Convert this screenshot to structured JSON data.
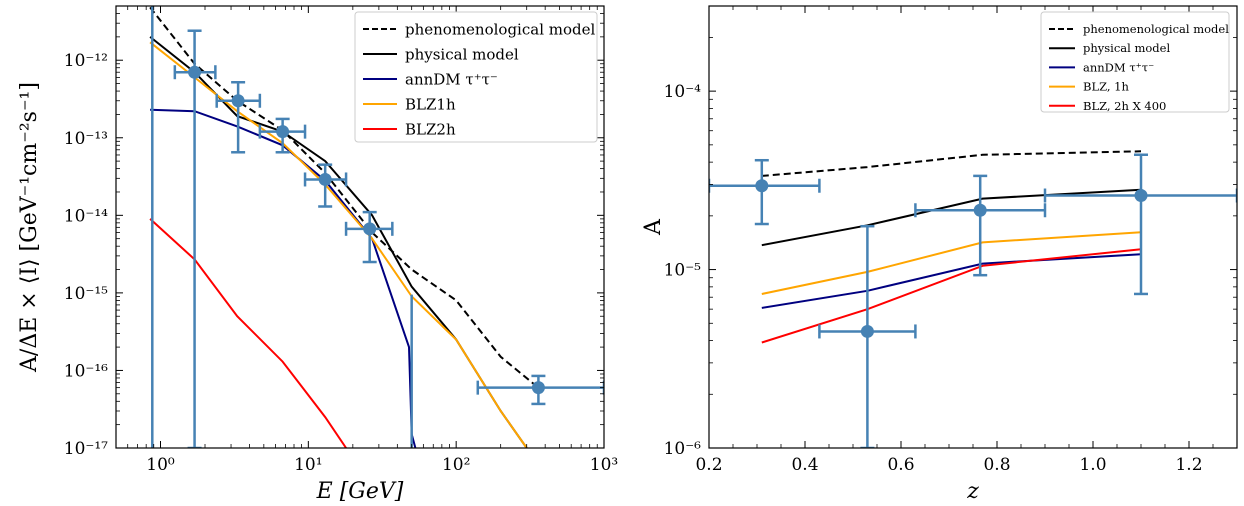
{
  "chart_data": [
    {
      "type": "line",
      "title": "",
      "xlabel": "E [GeV]",
      "ylabel": "A/ΔE × ⟨I⟩ [GeV⁻¹cm⁻²s⁻¹]",
      "xscale": "log",
      "yscale": "log",
      "xlim": [
        0.5,
        1000
      ],
      "ylim": [
        1e-17,
        5e-12
      ],
      "x_ticks": [
        1,
        10,
        100,
        1000
      ],
      "x_tick_labels": [
        "10⁰",
        "10¹",
        "10²",
        "10³"
      ],
      "y_ticks": [
        1e-17,
        1e-16,
        1e-15,
        1e-14,
        1e-13,
        1e-12
      ],
      "y_tick_labels": [
        "10⁻¹⁷",
        "10⁻¹⁶",
        "10⁻¹⁵",
        "10⁻¹⁴",
        "10⁻¹³",
        "10⁻¹²"
      ],
      "grid": false,
      "legend_position": "top-right",
      "series": [
        {
          "name": "phenomenological model",
          "color": "#000000",
          "dash": "dashed",
          "x": [
            0.85,
            1.7,
            3.3,
            6.7,
            13,
            27,
            50,
            100,
            200,
            380
          ],
          "y": [
            4.8e-12,
            9e-13,
            3e-13,
            1.25e-13,
            3.5e-14,
            6e-15,
            2e-15,
            8e-16,
            1.5e-16,
            5.5e-17
          ]
        },
        {
          "name": "physical model",
          "color": "#000000",
          "dash": "solid",
          "x": [
            0.85,
            1.7,
            3.3,
            6.7,
            13,
            27,
            50,
            100,
            200,
            300
          ],
          "y": [
            2e-12,
            7e-13,
            1.9e-13,
            1.2e-13,
            5e-14,
            1e-14,
            1.2e-15,
            2.5e-16,
            3e-17,
            1e-17
          ]
        },
        {
          "name": "annDM τ⁺τ⁻",
          "color": "#000080",
          "dash": "solid",
          "x": [
            0.85,
            1.7,
            3.3,
            6.7,
            13,
            27,
            48,
            50,
            53
          ],
          "y": [
            2.3e-13,
            2.2e-13,
            1.4e-13,
            8e-14,
            2.8e-14,
            5e-15,
            2e-16,
            1.5e-17,
            1e-17
          ]
        },
        {
          "name": "BLZ1h",
          "color": "#FFA500",
          "dash": "solid",
          "x": [
            0.85,
            1.7,
            3.3,
            6.7,
            13,
            27,
            50,
            100,
            200,
            300
          ],
          "y": [
            1.7e-12,
            6e-13,
            2.2e-13,
            8.5e-14,
            2.5e-14,
            5e-15,
            9e-16,
            2.5e-16,
            3e-17,
            1e-17
          ]
        },
        {
          "name": "BLZ2h",
          "color": "#FF0000",
          "dash": "solid",
          "x": [
            0.85,
            1.7,
            3.3,
            6.7,
            13,
            18
          ],
          "y": [
            9e-15,
            2.7e-15,
            5e-16,
            1.3e-16,
            2.5e-17,
            1e-17
          ]
        }
      ],
      "data_points": {
        "color": "#4682B4",
        "points": [
          {
            "x": 1.7,
            "y": 7e-13,
            "xlo": 1.25,
            "xhi": 2.35,
            "ylo": 1e-17,
            "yhi": 2.4e-12
          },
          {
            "x": 3.35,
            "y": 3e-13,
            "xlo": 2.4,
            "xhi": 4.7,
            "ylo": 6.5e-14,
            "yhi": 5.2e-13
          },
          {
            "x": 6.7,
            "y": 1.2e-13,
            "xlo": 4.7,
            "xhi": 9.5,
            "ylo": 6.5e-14,
            "yhi": 1.75e-13
          },
          {
            "x": 13,
            "y": 2.9e-14,
            "xlo": 9.5,
            "xhi": 18,
            "ylo": 1.3e-14,
            "yhi": 4.5e-14
          },
          {
            "x": 26,
            "y": 6.7e-15,
            "xlo": 18,
            "xhi": 37,
            "ylo": 2.5e-15,
            "yhi": 1.1e-14
          },
          {
            "x": 360,
            "y": 6e-17,
            "xlo": 140,
            "xhi": 1000,
            "ylo": 3.7e-17,
            "yhi": 8.5e-17
          }
        ],
        "vertical_lines": [
          {
            "x": 0.88,
            "ylo": 1e-17,
            "yhi": 5e-12
          },
          {
            "x": 50,
            "ylo": 1e-17,
            "yhi": 9.5e-16
          }
        ]
      }
    },
    {
      "type": "line",
      "title": "",
      "xlabel": "z",
      "ylabel": "A",
      "xscale": "linear",
      "yscale": "log",
      "xlim": [
        0.2,
        1.3
      ],
      "ylim": [
        1e-06,
        0.0003
      ],
      "x_ticks": [
        0.2,
        0.4,
        0.6,
        0.8,
        1.0,
        1.2
      ],
      "x_tick_labels": [
        "0.2",
        "0.4",
        "0.6",
        "0.8",
        "1.0",
        "1.2"
      ],
      "y_ticks": [
        1e-06,
        1e-05,
        0.0001
      ],
      "y_tick_labels": [
        "10⁻⁶",
        "10⁻⁵",
        "10⁻⁴"
      ],
      "grid": false,
      "legend_position": "top-right",
      "series": [
        {
          "name": "phenomenological model",
          "color": "#000000",
          "dash": "dashed",
          "x": [
            0.31,
            0.53,
            0.77,
            1.1
          ],
          "y": [
            3.35e-05,
            3.75e-05,
            4.4e-05,
            4.6e-05
          ]
        },
        {
          "name": "physical model",
          "color": "#000000",
          "dash": "solid",
          "x": [
            0.31,
            0.53,
            0.77,
            1.1
          ],
          "y": [
            1.37e-05,
            1.77e-05,
            2.5e-05,
            2.8e-05
          ]
        },
        {
          "name": "annDM τ⁺τ⁻",
          "color": "#000080",
          "dash": "solid",
          "x": [
            0.31,
            0.53,
            0.77,
            1.1
          ],
          "y": [
            6.1e-06,
            7.6e-06,
            1.08e-05,
            1.22e-05
          ]
        },
        {
          "name": "BLZ, 1h",
          "color": "#FFA500",
          "dash": "solid",
          "x": [
            0.31,
            0.53,
            0.77,
            1.1
          ],
          "y": [
            7.3e-06,
            9.7e-06,
            1.42e-05,
            1.62e-05
          ]
        },
        {
          "name": "BLZ, 2h X 400",
          "color": "#FF0000",
          "dash": "solid",
          "x": [
            0.31,
            0.53,
            0.77,
            1.1
          ],
          "y": [
            3.9e-06,
            6e-06,
            1.05e-05,
            1.3e-05
          ]
        }
      ],
      "data_points": {
        "color": "#4682B4",
        "points": [
          {
            "x": 0.31,
            "y": 2.95e-05,
            "xlo": 0.2,
            "xhi": 0.43,
            "ylo": 1.8e-05,
            "yhi": 4.1e-05
          },
          {
            "x": 0.53,
            "y": 4.5e-06,
            "xlo": 0.43,
            "xhi": 0.63,
            "ylo": 1e-06,
            "yhi": 1.75e-05
          },
          {
            "x": 0.765,
            "y": 2.15e-05,
            "xlo": 0.63,
            "xhi": 0.9,
            "ylo": 9.3e-06,
            "yhi": 3.35e-05
          },
          {
            "x": 1.1,
            "y": 2.6e-05,
            "xlo": 0.9,
            "xhi": 1.3,
            "ylo": 7.3e-06,
            "yhi": 4.4e-05
          }
        ],
        "vertical_lines": []
      }
    }
  ]
}
